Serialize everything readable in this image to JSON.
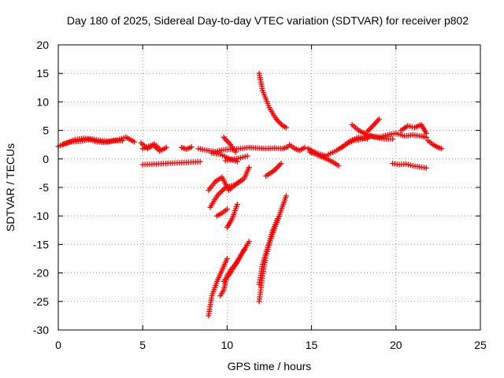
{
  "chart_data": {
    "type": "scatter",
    "title": "Day 180 of 2025, Sidereal Day-to-day VTEC variation (SDTVAR) for receiver p802",
    "xlabel": "GPS time / hours",
    "ylabel": "SDTVAR / TECUs",
    "xlim": [
      0,
      25
    ],
    "ylim": [
      -30,
      20
    ],
    "xticks": [
      0,
      5,
      10,
      15,
      20,
      25
    ],
    "yticks": [
      -30,
      -25,
      -20,
      -15,
      -10,
      -5,
      0,
      5,
      10,
      15,
      20
    ],
    "grid": true,
    "marker": "+",
    "color": "#ff0000",
    "segments": [
      {
        "x": [
          0.0,
          0.5,
          1.0,
          1.5,
          2.0,
          2.5,
          3.0,
          3.5,
          4.0,
          4.5
        ],
        "y": [
          2.2,
          2.8,
          3.4,
          3.6,
          3.5,
          3.2,
          3.1,
          3.3,
          3.8,
          3.0
        ]
      },
      {
        "x": [
          0.3,
          0.8,
          1.3,
          1.8,
          2.3,
          2.8,
          3.3,
          3.8
        ],
        "y": [
          2.6,
          3.0,
          3.1,
          3.4,
          3.0,
          2.9,
          3.2,
          3.2
        ]
      },
      {
        "x": [
          4.9,
          5.3,
          5.7,
          6.1,
          6.4
        ],
        "y": [
          2.8,
          1.8,
          2.6,
          1.5,
          2.0
        ]
      },
      {
        "x": [
          5.0,
          5.6,
          6.0
        ],
        "y": [
          1.8,
          2.5,
          1.4
        ]
      },
      {
        "x": [
          7.3,
          7.6,
          7.9
        ],
        "y": [
          2.0,
          1.7,
          2.1
        ]
      },
      {
        "x": [
          8.3,
          8.8,
          9.3,
          9.8,
          10.3,
          10.8,
          11.3,
          11.8,
          12.3,
          12.8,
          13.3,
          13.6
        ],
        "y": [
          1.8,
          1.5,
          1.3,
          1.6,
          1.7,
          1.8,
          2.0,
          1.9,
          1.8,
          1.9,
          1.8,
          2.1
        ]
      },
      {
        "x": [
          9.1,
          9.6,
          10.1,
          10.6
        ],
        "y": [
          1.0,
          0.8,
          0.1,
          -0.5
        ]
      },
      {
        "x": [
          9.8,
          10.2,
          10.5
        ],
        "y": [
          3.8,
          2.5,
          1.2
        ]
      },
      {
        "x": [
          9.9,
          10.3,
          10.8,
          11.2
        ],
        "y": [
          -0.3,
          -0.1,
          0.2,
          0.5
        ]
      },
      {
        "x": [
          8.9,
          9.3,
          9.7,
          10.1,
          10.5,
          10.8
        ],
        "y": [
          -5.5,
          -4.0,
          -3.2,
          -5.5,
          -4.5,
          -3.8
        ]
      },
      {
        "x": [
          9.0,
          9.4,
          9.9,
          10.5,
          11.0,
          11.3
        ],
        "y": [
          -8.5,
          -6.5,
          -5.0,
          -4.5,
          -3.5,
          -1.5
        ]
      },
      {
        "x": [
          9.4,
          9.7,
          10.0
        ],
        "y": [
          -10.0,
          -9.5,
          -8.8
        ]
      },
      {
        "x": [
          10.0,
          10.3,
          10.6
        ],
        "y": [
          -12.0,
          -10.5,
          -8.0
        ]
      },
      {
        "x": [
          8.9,
          9.1,
          9.4,
          9.7,
          10.0
        ],
        "y": [
          -27.5,
          -24.0,
          -21.5,
          -19.5,
          -17.5
        ]
      },
      {
        "x": [
          9.6,
          9.8,
          10.0,
          10.2,
          10.5,
          10.8,
          11.1,
          11.3
        ],
        "y": [
          -24.0,
          -23.0,
          -20.5,
          -19.5,
          -18.5,
          -17.0,
          -15.5,
          -14.5
        ]
      },
      {
        "x": [
          9.8,
          10.2,
          10.6,
          11.0
        ],
        "y": [
          -21.5,
          -20.0,
          -18.0,
          -16.0
        ]
      },
      {
        "x": [
          11.9,
          12.1,
          12.5,
          12.9,
          13.3,
          13.5
        ],
        "y": [
          15.0,
          12.0,
          9.0,
          7.0,
          5.8,
          5.5
        ]
      },
      {
        "x": [
          11.9,
          12.1,
          12.3,
          12.6,
          12.9,
          13.2,
          13.5
        ],
        "y": [
          -25.0,
          -20.5,
          -17.0,
          -14.0,
          -11.5,
          -9.0,
          -6.5
        ]
      },
      {
        "x": [
          11.9,
          12.1,
          12.4,
          12.7,
          13.0
        ],
        "y": [
          -22.0,
          -18.5,
          -15.5,
          -12.5,
          -10.5
        ]
      },
      {
        "x": [
          12.3,
          12.8,
          13.2
        ],
        "y": [
          -3.0,
          -2.0,
          -0.8
        ]
      },
      {
        "x": [
          13.7,
          14.0,
          14.3,
          14.6
        ],
        "y": [
          2.5,
          1.8,
          1.5,
          2.0
        ]
      },
      {
        "x": [
          14.9,
          15.2,
          15.5,
          15.9,
          16.3,
          16.6
        ],
        "y": [
          1.2,
          0.9,
          0.5,
          0.0,
          -0.6,
          -1.2
        ]
      },
      {
        "x": [
          14.8,
          15.3,
          15.9
        ],
        "y": [
          1.8,
          1.0,
          0.5
        ]
      },
      {
        "x": [
          16.0,
          16.5,
          17.0,
          17.5,
          18.0,
          18.5,
          19.0,
          19.5,
          20.0,
          20.5,
          21.0,
          21.5,
          21.8
        ],
        "y": [
          0.8,
          1.5,
          2.5,
          3.2,
          3.5,
          4.0,
          3.8,
          4.2,
          4.5,
          4.0,
          4.2,
          4.0,
          3.8
        ]
      },
      {
        "x": [
          16.8,
          17.3,
          17.8,
          18.3
        ],
        "y": [
          2.0,
          3.2,
          3.8,
          3.5
        ]
      },
      {
        "x": [
          17.4,
          17.8,
          18.3,
          18.8,
          19.3,
          19.8
        ],
        "y": [
          6.0,
          5.0,
          4.2,
          3.8,
          3.5,
          3.5
        ]
      },
      {
        "x": [
          18.3,
          18.7,
          19.0
        ],
        "y": [
          4.8,
          6.0,
          7.0
        ]
      },
      {
        "x": [
          20.3,
          20.7,
          21.1,
          21.5,
          21.8
        ],
        "y": [
          5.0,
          5.8,
          5.5,
          6.0,
          4.5
        ]
      },
      {
        "x": [
          19.8,
          20.2,
          20.6,
          21.0,
          21.4,
          21.8
        ],
        "y": [
          -0.8,
          -1.0,
          -0.9,
          -1.2,
          -1.4,
          -1.6
        ]
      },
      {
        "x": [
          21.9,
          22.2,
          22.5,
          22.7
        ],
        "y": [
          3.2,
          2.5,
          2.0,
          1.8
        ]
      },
      {
        "x": [
          5.0,
          8.4
        ],
        "y": [
          -1.0,
          -0.5
        ]
      }
    ]
  }
}
